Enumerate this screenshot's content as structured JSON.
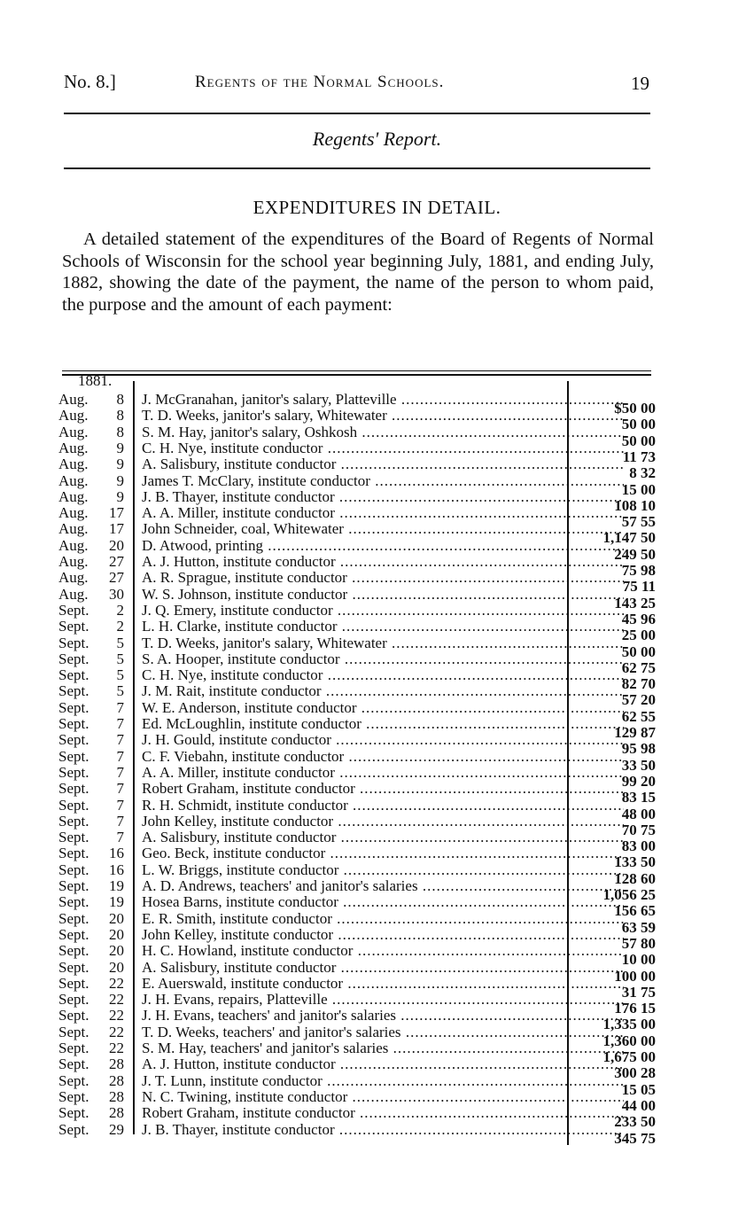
{
  "header": {
    "left": "No. 8.]",
    "title": "Regents of the Normal Schools.",
    "page_number": "19"
  },
  "subheader": "Regents' Report.",
  "heading": "EXPENDITURES IN DETAIL.",
  "intro": "A detailed statement of the expenditures of the Board of Regents of Normal Schools of Wisconsin for the school year beginning July, 1881, and ending July, 1882, showing the date of the payment, the name of the person to whom paid, the purpose and the amount of each payment:",
  "table": {
    "year": "1881.",
    "rows": [
      [
        "Aug.",
        "8",
        "J. McGranahan, janitor's salary, Platteville",
        "$50 00"
      ],
      [
        "Aug.",
        "8",
        "T. D. Weeks, janitor's salary, Whitewater",
        "50 00"
      ],
      [
        "Aug.",
        "8",
        "S. M. Hay, janitor's salary, Oshkosh",
        "50 00"
      ],
      [
        "Aug.",
        "9",
        "C. H. Nye, institute conductor",
        "11 73"
      ],
      [
        "Aug.",
        "9",
        "A. Salisbury, institute conductor",
        "8 32"
      ],
      [
        "Aug.",
        "9",
        "James T. McClary, institute conductor",
        "15 00"
      ],
      [
        "Aug.",
        "9",
        "J. B. Thayer, institute conductor",
        "108 10"
      ],
      [
        "Aug.",
        "17",
        "A. A. Miller, institute conductor",
        "57 55"
      ],
      [
        "Aug.",
        "17",
        "John Schneider, coal, Whitewater",
        "1,147 50"
      ],
      [
        "Aug.",
        "20",
        "D. Atwood, printing",
        "249 50"
      ],
      [
        "Aug.",
        "27",
        "A. J. Hutton, institute conductor",
        "75 98"
      ],
      [
        "Aug.",
        "27",
        "A. R. Sprague, institute conductor",
        "75 11"
      ],
      [
        "Aug.",
        "30",
        "W. S. Johnson, institute conductor",
        "143 25"
      ],
      [
        "Sept.",
        "2",
        "J. Q. Emery, institute conductor",
        "45 96"
      ],
      [
        "Sept.",
        "2",
        "L. H. Clarke, institute conductor",
        "25 00"
      ],
      [
        "Sept.",
        "5",
        "T. D. Weeks, janitor's salary, Whitewater",
        "50 00"
      ],
      [
        "Sept.",
        "5",
        "S. A. Hooper, institute conductor",
        "62 75"
      ],
      [
        "Sept.",
        "5",
        "C. H. Nye, institute conductor",
        "82 70"
      ],
      [
        "Sept.",
        "5",
        "J. M. Rait, institute conductor",
        "57 20"
      ],
      [
        "Sept.",
        "7",
        "W. E. Anderson, institute conductor",
        "62 55"
      ],
      [
        "Sept.",
        "7",
        "Ed. McLoughlin, institute conductor",
        "129 87"
      ],
      [
        "Sept.",
        "7",
        "J. H. Gould, institute conductor",
        "95 98"
      ],
      [
        "Sept.",
        "7",
        "C. F. Viebahn, institute conductor",
        "33 50"
      ],
      [
        "Sept.",
        "7",
        "A. A. Miller, institute conductor",
        "99 20"
      ],
      [
        "Sept.",
        "7",
        "Robert Graham, institute conductor",
        "83 15"
      ],
      [
        "Sept.",
        "7",
        "R. H. Schmidt, institute conductor",
        "48 00"
      ],
      [
        "Sept.",
        "7",
        "John Kelley, institute conductor",
        "70 75"
      ],
      [
        "Sept.",
        "7",
        "A. Salisbury, institute conductor",
        "83 00"
      ],
      [
        "Sept.",
        "16",
        "Geo. Beck, institute conductor",
        "133 50"
      ],
      [
        "Sept.",
        "16",
        "L. W. Briggs, institute conductor",
        "128 60"
      ],
      [
        "Sept.",
        "19",
        "A. D. Andrews, teachers' and janitor's salaries",
        "1,056 25"
      ],
      [
        "Sept.",
        "19",
        "Hosea Barns, institute conductor",
        "156 65"
      ],
      [
        "Sept.",
        "20",
        "E. R. Smith, institute conductor",
        "63 59"
      ],
      [
        "Sept.",
        "20",
        "John Kelley, institute conductor",
        "57 80"
      ],
      [
        "Sept.",
        "20",
        "H. C. Howland, institute conductor",
        "10 00"
      ],
      [
        "Sept.",
        "20",
        "A. Salisbury, institute conductor",
        "100 00"
      ],
      [
        "Sept.",
        "22",
        "E. Auerswald, institute conductor",
        "31 75"
      ],
      [
        "Sept.",
        "22",
        "J. H. Evans, repairs, Platteville",
        "176 15"
      ],
      [
        "Sept.",
        "22",
        "J. H. Evans, teachers' and janitor's salaries",
        "1,335 00"
      ],
      [
        "Sept.",
        "22",
        "T. D. Weeks, teachers' and janitor's salaries",
        "1,360 00"
      ],
      [
        "Sept.",
        "22",
        "S. M. Hay, teachers' and janitor's salaries",
        "1,675 00"
      ],
      [
        "Sept.",
        "28",
        "A. J. Hutton, institute conductor",
        "300 28"
      ],
      [
        "Sept.",
        "28",
        "J. T. Lunn, institute conductor",
        "15 05"
      ],
      [
        "Sept.",
        "28",
        "N. C. Twining, institute conductor",
        "44 00"
      ],
      [
        "Sept.",
        "28",
        "Robert Graham, institute conductor",
        "233 50"
      ],
      [
        "Sept.",
        "29",
        "J. B. Thayer, institute conductor",
        "345 75"
      ]
    ]
  }
}
